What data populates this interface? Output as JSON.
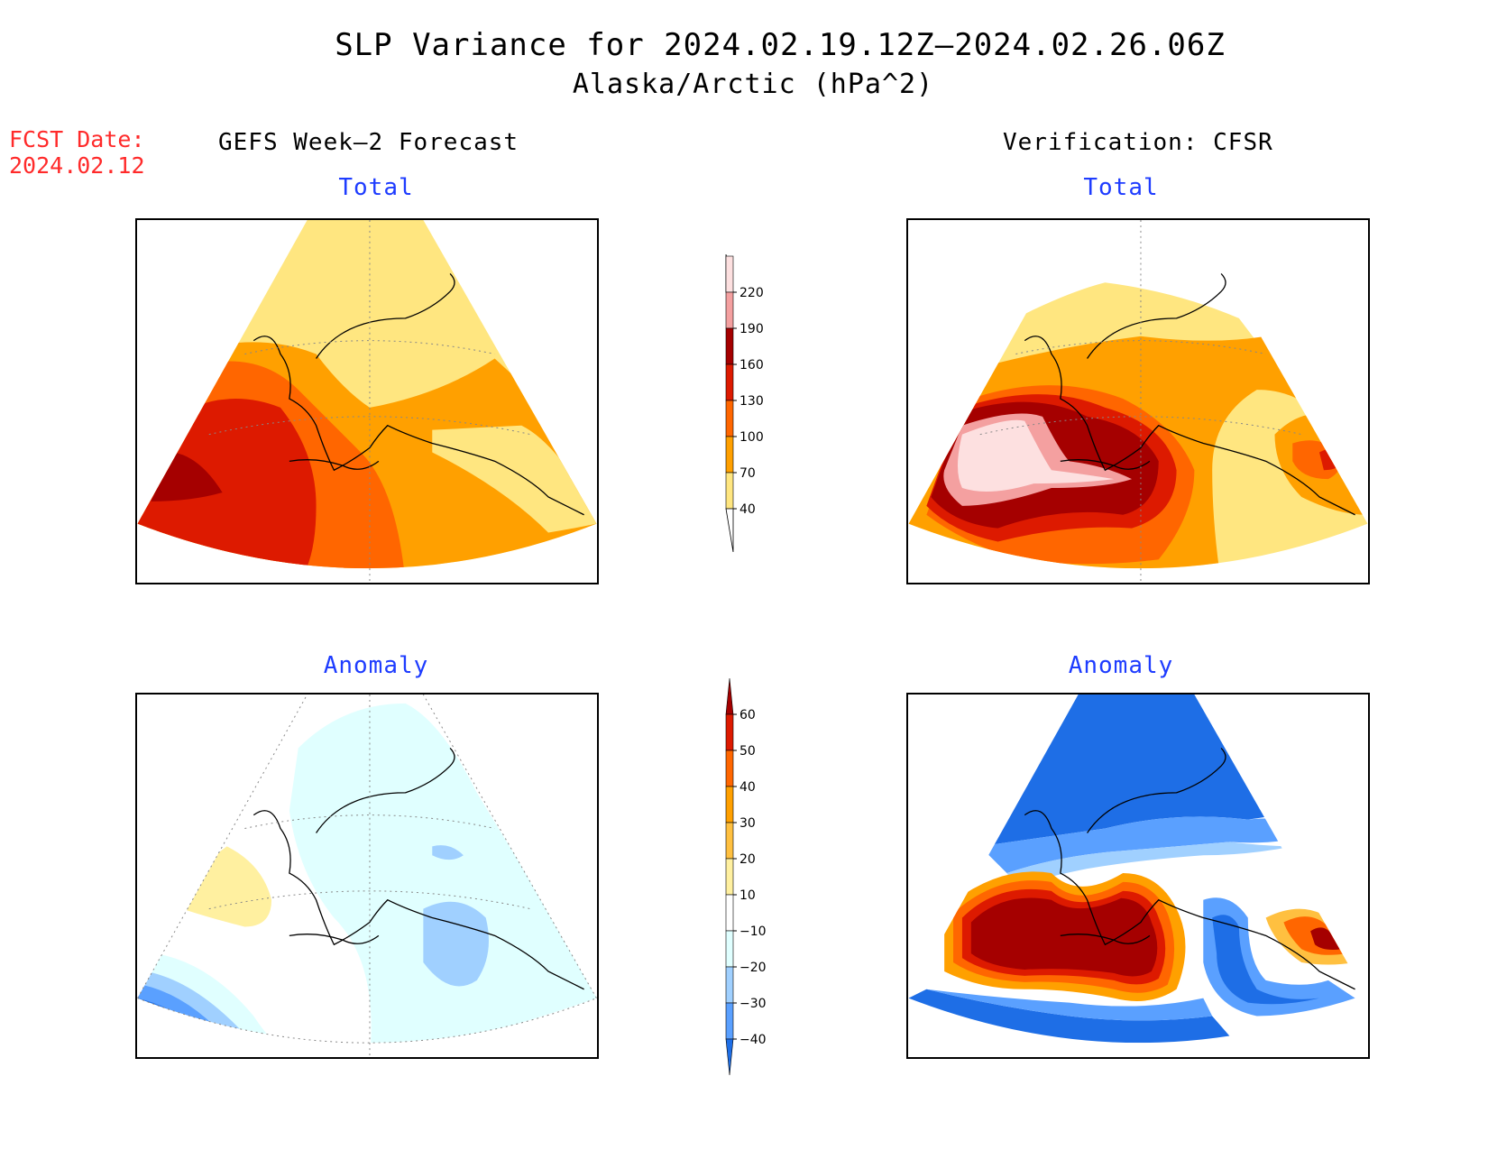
{
  "title": "SLP Variance for 2024.02.19.12Z–2024.02.26.06Z",
  "subtitle": "Alaska/Arctic (hPa^2)",
  "fcst_date": {
    "label": "FCST Date:",
    "value": "2024.02.12"
  },
  "columns": {
    "left": "GEFS Week–2 Forecast",
    "right": "Verification: CFSR"
  },
  "panels": {
    "forecast_total": {
      "title": "Total"
    },
    "verif_total": {
      "title": "Total"
    },
    "forecast_anomaly": {
      "title": "Anomaly"
    },
    "verif_anomaly": {
      "title": "Anomaly"
    }
  },
  "colorbars": {
    "total": {
      "labels": [
        "220",
        "190",
        "160",
        "130",
        "100",
        "70",
        "40"
      ],
      "colors": [
        "#fde0e0",
        "#f4a0a0",
        "#a50000",
        "#dd1a00",
        "#ff6600",
        "#ffa000",
        "#ffe680"
      ]
    },
    "anomaly": {
      "labels": [
        "60",
        "50",
        "40",
        "30",
        "20",
        "10",
        "−10",
        "−20",
        "−30",
        "−40"
      ],
      "colors": [
        "#a50000",
        "#dd1a00",
        "#ff6600",
        "#ffa000",
        "#ffc040",
        "#fff0a0",
        "#ffffff",
        "#e0ffff",
        "#a0d0ff",
        "#5aa0ff",
        "#1e6ee6"
      ]
    }
  }
}
